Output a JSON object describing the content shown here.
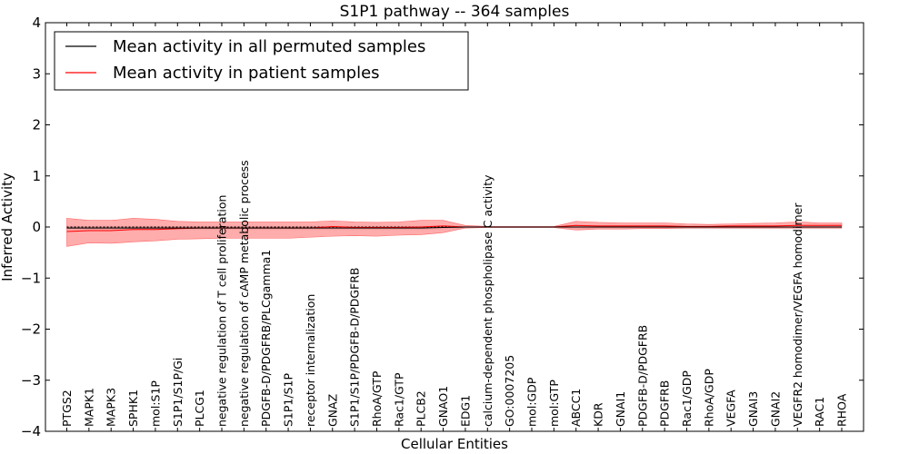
{
  "chart_data": {
    "type": "line",
    "title": "S1P1 pathway -- 364 samples",
    "xlabel": "Cellular Entities",
    "ylabel": "Inferred Activity",
    "ylim": [
      -4,
      4
    ],
    "yticks": [
      -4,
      -3,
      -2,
      -1,
      0,
      1,
      2,
      3,
      4
    ],
    "ytick_labels": [
      "−4",
      "−3",
      "−2",
      "−1",
      "0",
      "1",
      "2",
      "3",
      "4"
    ],
    "categories": [
      "PTGS2",
      "MAPK1",
      "MAPK3",
      "SPHK1",
      "mol:S1P",
      "S1P1/S1P/Gi",
      "PLCG1",
      "negative regulation of T cell proliferation",
      "negative regulation of cAMP metabolic process",
      "PDGFB-D/PDGFRB/PLCgamma1",
      "S1P1/S1P",
      "receptor internalization",
      "GNAZ",
      "S1P1/S1P/PDGFB-D/PDGFRB",
      "RhoA/GTP",
      "Rac1/GTP",
      "PLCB2",
      "GNAO1",
      "EDG1",
      "calcium-dependent phospholipase C activity",
      "GO:0007205",
      "mol:GDP",
      "mol:GTP",
      "ABCC1",
      "KDR",
      "GNAI1",
      "PDGFB-D/PDGFRB",
      "PDGFRB",
      "Rac1/GDP",
      "RhoA/GDP",
      "VEGFA",
      "GNAI3",
      "GNAI2",
      "VEGFR2 homodimer/VEGFA homodimer",
      "RAC1",
      "RHOA"
    ],
    "series": [
      {
        "name": "Mean activity in all permuted samples",
        "color": "#000000",
        "values": [
          -0.02,
          -0.02,
          -0.02,
          -0.02,
          -0.02,
          -0.02,
          -0.02,
          -0.02,
          -0.02,
          -0.02,
          -0.02,
          -0.02,
          -0.02,
          -0.02,
          -0.02,
          -0.02,
          -0.02,
          -0.01,
          0.0,
          0.0,
          0.0,
          0.0,
          0.0,
          0.0,
          0.0,
          0.0,
          0.0,
          0.0,
          0.0,
          0.0,
          0.0,
          0.0,
          0.0,
          0.0,
          0.0,
          0.0
        ],
        "lower": [
          -0.06,
          -0.06,
          -0.06,
          -0.06,
          -0.06,
          -0.06,
          -0.06,
          -0.06,
          -0.06,
          -0.06,
          -0.06,
          -0.06,
          -0.06,
          -0.06,
          -0.06,
          -0.06,
          -0.06,
          -0.05,
          -0.03,
          -0.01,
          -0.01,
          -0.01,
          -0.01,
          -0.04,
          -0.04,
          -0.04,
          -0.04,
          -0.04,
          -0.04,
          -0.04,
          -0.04,
          -0.04,
          -0.04,
          -0.04,
          -0.04,
          -0.04
        ],
        "upper": [
          0.02,
          0.02,
          0.02,
          0.02,
          0.02,
          0.02,
          0.02,
          0.02,
          0.02,
          0.02,
          0.02,
          0.02,
          0.02,
          0.02,
          0.02,
          0.02,
          0.02,
          0.03,
          0.02,
          0.01,
          0.01,
          0.01,
          0.01,
          0.04,
          0.04,
          0.04,
          0.04,
          0.04,
          0.04,
          0.04,
          0.04,
          0.04,
          0.04,
          0.04,
          0.04,
          0.04
        ]
      },
      {
        "name": "Mean activity in patient samples",
        "color": "#ff0000",
        "fill": "#ff8080",
        "values": [
          -0.09,
          -0.07,
          -0.07,
          -0.05,
          -0.05,
          -0.03,
          -0.02,
          -0.02,
          -0.02,
          -0.02,
          -0.02,
          -0.02,
          0.01,
          -0.01,
          -0.01,
          -0.01,
          0.0,
          0.02,
          0.0,
          0.0,
          0.0,
          0.0,
          0.0,
          0.03,
          0.02,
          0.02,
          0.02,
          0.02,
          0.01,
          0.01,
          0.02,
          0.02,
          0.02,
          0.03,
          0.03,
          0.03
        ],
        "lower": [
          -0.38,
          -0.31,
          -0.32,
          -0.29,
          -0.27,
          -0.24,
          -0.23,
          -0.22,
          -0.22,
          -0.22,
          -0.22,
          -0.2,
          -0.18,
          -0.17,
          -0.18,
          -0.16,
          -0.15,
          -0.11,
          -0.02,
          -0.01,
          -0.01,
          -0.01,
          -0.01,
          -0.06,
          -0.04,
          -0.04,
          -0.03,
          -0.03,
          -0.02,
          -0.02,
          -0.02,
          -0.02,
          -0.02,
          -0.02,
          -0.02,
          -0.02
        ],
        "upper": [
          0.17,
          0.13,
          0.13,
          0.17,
          0.15,
          0.11,
          0.1,
          0.1,
          0.1,
          0.1,
          0.1,
          0.1,
          0.12,
          0.1,
          0.09,
          0.1,
          0.13,
          0.13,
          0.03,
          0.01,
          0.01,
          0.01,
          0.01,
          0.11,
          0.09,
          0.08,
          0.08,
          0.08,
          0.06,
          0.05,
          0.06,
          0.07,
          0.08,
          0.1,
          0.08,
          0.08
        ]
      }
    ],
    "reference_line": {
      "y": 0,
      "style": "dashed"
    },
    "legend": {
      "position": "top-left"
    }
  }
}
